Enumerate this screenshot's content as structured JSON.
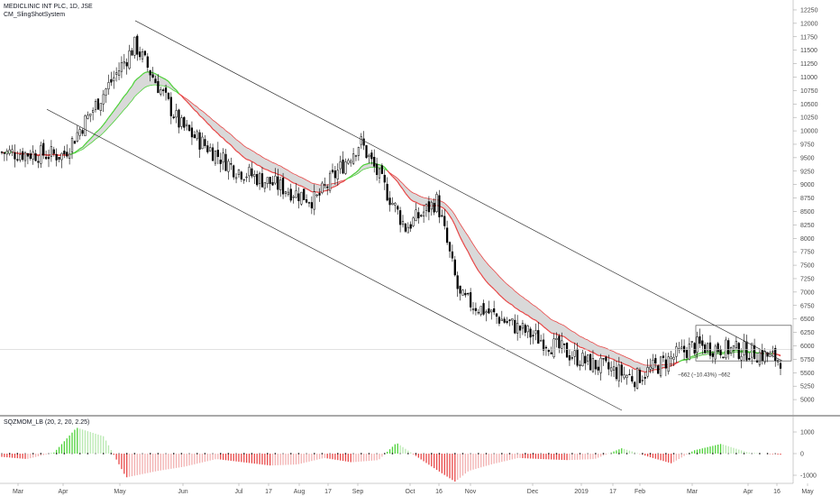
{
  "header": {
    "symbol_title": "MEDICLINIC INT PLC, 1D, JSE",
    "indicator_name": "CM_SlingShotSystem"
  },
  "lower_pane": {
    "title": "SQZMOM_LB (20, 2, 20, 2.25)",
    "y_ticks": [
      "1000",
      "0",
      "-1000"
    ]
  },
  "chart_data": [
    {
      "type": "candlestick",
      "title": "MEDICLINIC INT PLC, 1D, JSE",
      "y_axis": {
        "position": "right",
        "ylim": [
          4800,
          12300
        ],
        "ticks": [
          5000,
          5250,
          5500,
          5750,
          6000,
          6250,
          6500,
          6750,
          7000,
          7250,
          7500,
          7750,
          8000,
          8250,
          8500,
          8750,
          9000,
          9250,
          9500,
          9750,
          10000,
          10250,
          10500,
          10750,
          11000,
          11250,
          11500,
          11750,
          12000,
          12250
        ]
      },
      "x_axis": {
        "labels": [
          "Mar",
          "Apr",
          "May",
          "Jun",
          "Jul",
          "17",
          "Aug",
          "17",
          "Sep",
          "Oct",
          "16",
          "Nov",
          "Dec",
          "2019",
          "17",
          "Feb",
          "Mar",
          "Apr",
          "16",
          "May"
        ]
      },
      "price_path": [
        {
          "month": "Mar",
          "close": 9600
        },
        {
          "month": "Apr",
          "close": 9550
        },
        {
          "month": "May",
          "close": 11600
        },
        {
          "month": "Jun",
          "close": 10100
        },
        {
          "month": "Jul",
          "close": 9300
        },
        {
          "month": "Aug",
          "close": 8700
        },
        {
          "month": "Sep",
          "close": 9800
        },
        {
          "month": "Oct",
          "close": 8200
        },
        {
          "month": "16",
          "close": 8700
        },
        {
          "month": "Nov",
          "close": 6900
        },
        {
          "month": "Dec",
          "close": 6200
        },
        {
          "month": "2019",
          "close": 5700
        },
        {
          "month": "Feb",
          "close": 5400
        },
        {
          "month": "Mar",
          "close": 6000
        },
        {
          "month": "Apr",
          "close": 5900
        },
        {
          "month": "16",
          "close": 5750
        }
      ],
      "annotations": [
        "−662 (−10.43%) −662"
      ],
      "colors": {
        "fast_ema_band_up": "#4cd137",
        "band_down": "#e84545",
        "band_fill": "#d0d0d0",
        "candles": "#000000"
      }
    },
    {
      "type": "histogram",
      "title": "SQZMOM_LB (20, 2, 20, 2.25)",
      "y_axis": {
        "ticks": [
          1000,
          0,
          -1000
        ]
      },
      "series": [
        {
          "name": "momentum",
          "values": [
            -150,
            -250,
            50,
            1200,
            800,
            -1100,
            -800,
            -600,
            -250,
            -550,
            -500,
            -200,
            -400,
            -300,
            500,
            -350,
            -900,
            -1300,
            -800,
            -500,
            -200,
            -250,
            -300,
            -250,
            250,
            -150,
            -450,
            150,
            450,
            50,
            -50
          ]
        }
      ],
      "colors": {
        "positive": "#4cd137",
        "negative": "#e84545",
        "positive_fading": "#b8e8b0",
        "negative_fading": "#f2b0b0"
      }
    }
  ]
}
